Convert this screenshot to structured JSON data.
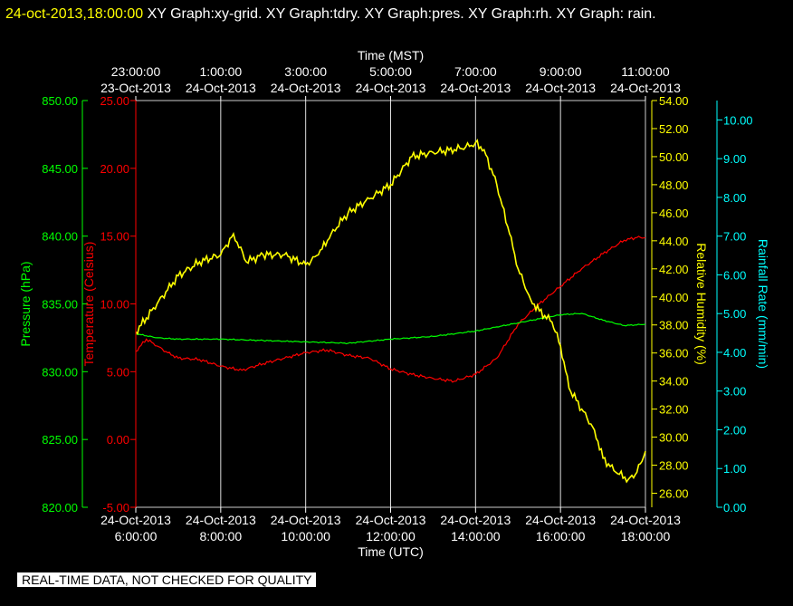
{
  "header": {
    "timestamp": "24-oct-2013,18:00:00",
    "titles_text": "XY Graph:xy-grid.  XY Graph:tdry.  XY Graph:pres.  XY Graph:rh.  XY Graph: rain."
  },
  "footer": {
    "disclaimer": "REAL-TIME DATA, NOT CHECKED FOR QUALITY"
  },
  "chart_data": {
    "type": "line",
    "grid": true,
    "x": {
      "label_bottom": "Time (UTC)",
      "label_top": "Time (MST)",
      "range_hours_utc": [
        "24-Oct-2013 6:00:00",
        "24-Oct-2013 18:00:00"
      ],
      "bottom_ticks": [
        {
          "date": "24-Oct-2013",
          "time": "6:00:00",
          "h": 0
        },
        {
          "date": "24-Oct-2013",
          "time": "8:00:00",
          "h": 2
        },
        {
          "date": "24-Oct-2013",
          "time": "10:00:00",
          "h": 4
        },
        {
          "date": "24-Oct-2013",
          "time": "12:00:00",
          "h": 6
        },
        {
          "date": "24-Oct-2013",
          "time": "14:00:00",
          "h": 8
        },
        {
          "date": "24-Oct-2013",
          "time": "16:00:00",
          "h": 10
        },
        {
          "date": "24-Oct-2013",
          "time": "18:00:00",
          "h": 12
        }
      ],
      "top_ticks": [
        {
          "time": "23:00:00",
          "date": "23-Oct-2013",
          "h": 0
        },
        {
          "time": "1:00:00",
          "date": "24-Oct-2013",
          "h": 2
        },
        {
          "time": "3:00:00",
          "date": "24-Oct-2013",
          "h": 4
        },
        {
          "time": "5:00:00",
          "date": "24-Oct-2013",
          "h": 6
        },
        {
          "time": "7:00:00",
          "date": "24-Oct-2013",
          "h": 8
        },
        {
          "time": "9:00:00",
          "date": "24-Oct-2013",
          "h": 10
        },
        {
          "time": "11:00:00",
          "date": "24-Oct-2013",
          "h": 12
        }
      ]
    },
    "axes": [
      {
        "id": "pressure",
        "label": "Pressure (hPa)",
        "color": "#00ff00",
        "min": 820,
        "max": 850,
        "ticks": [
          "820.00",
          "825.00",
          "830.00",
          "835.00",
          "840.00",
          "845.00",
          "850.00"
        ]
      },
      {
        "id": "temperature",
        "label": "Temperature (Celsius)",
        "color": "#ff0000",
        "min": -5,
        "max": 25,
        "ticks": [
          "-5.00",
          "0.00",
          "5.00",
          "10.00",
          "15.00",
          "20.00",
          "25.00"
        ]
      },
      {
        "id": "humidity",
        "label": "Relative Humidity (%)",
        "color": "#ffff00",
        "min": 25,
        "max": 54,
        "ticks": [
          "26.00",
          "28.00",
          "30.00",
          "32.00",
          "34.00",
          "36.00",
          "38.00",
          "40.00",
          "42.00",
          "44.00",
          "46.00",
          "48.00",
          "50.00",
          "52.00",
          "54.00"
        ]
      },
      {
        "id": "rain",
        "label": "Rainfall Rate (mm/min)",
        "color": "#00ffff",
        "min": 0,
        "max": 10.5,
        "ticks": [
          "0.00",
          "1.00",
          "2.00",
          "3.00",
          "4.00",
          "5.00",
          "6.00",
          "7.00",
          "8.00",
          "9.00",
          "10.00"
        ]
      }
    ],
    "series": [
      {
        "name": "tdry",
        "axis": "temperature",
        "color": "#ff0000",
        "x": [
          0,
          0.25,
          0.5,
          0.75,
          1.0,
          1.5,
          2.0,
          2.5,
          3.0,
          3.5,
          4.0,
          4.5,
          5.0,
          5.5,
          6.0,
          6.5,
          7.0,
          7.5,
          8.0,
          8.5,
          9.0,
          9.5,
          10.0,
          10.5,
          11.0,
          11.5,
          11.8,
          12.0
        ],
        "y": [
          6.5,
          7.4,
          6.9,
          6.4,
          6.0,
          5.9,
          5.4,
          5.1,
          5.6,
          6.0,
          6.4,
          6.6,
          6.2,
          6.0,
          5.2,
          4.8,
          4.5,
          4.3,
          4.8,
          6.0,
          8.5,
          10.0,
          11.3,
          12.6,
          13.7,
          14.7,
          14.9,
          14.9
        ]
      },
      {
        "name": "pres",
        "axis": "pressure",
        "color": "#00ff00",
        "x": [
          0,
          0.5,
          1,
          2,
          3,
          4,
          5,
          6,
          7,
          8,
          8.5,
          9,
          9.5,
          10,
          10.5,
          11,
          11.5,
          12
        ],
        "y": [
          832.8,
          832.5,
          832.4,
          832.4,
          832.3,
          832.2,
          832.1,
          832.4,
          832.6,
          833.0,
          833.3,
          833.6,
          833.9,
          834.2,
          834.3,
          833.8,
          833.4,
          833.5
        ]
      },
      {
        "name": "rh",
        "axis": "humidity",
        "color": "#ffff00",
        "x": [
          0,
          0.25,
          0.5,
          0.75,
          1.0,
          1.5,
          2.0,
          2.3,
          2.6,
          3.0,
          3.5,
          4.0,
          4.3,
          4.6,
          5.0,
          5.5,
          6.0,
          6.5,
          7.0,
          7.5,
          7.9,
          8.0,
          8.2,
          8.5,
          8.8,
          9.0,
          9.3,
          9.5,
          9.8,
          10.0,
          10.2,
          10.5,
          10.8,
          11.0,
          11.3,
          11.6,
          11.8,
          12.0
        ],
        "y": [
          37.5,
          38.5,
          39.5,
          40.5,
          41.5,
          42.5,
          43.0,
          44.5,
          42.5,
          43.0,
          43.0,
          42.3,
          43.0,
          44.5,
          46.0,
          47.0,
          48.0,
          50.0,
          50.3,
          50.5,
          50.8,
          51.0,
          50.5,
          48.0,
          44.5,
          42.0,
          39.8,
          39.0,
          38.2,
          36.5,
          33.5,
          32.0,
          30.5,
          28.5,
          27.5,
          27.0,
          27.5,
          29.0
        ]
      },
      {
        "name": "rain",
        "axis": "rain",
        "color": "#00ffff",
        "x": [],
        "y": []
      }
    ]
  }
}
